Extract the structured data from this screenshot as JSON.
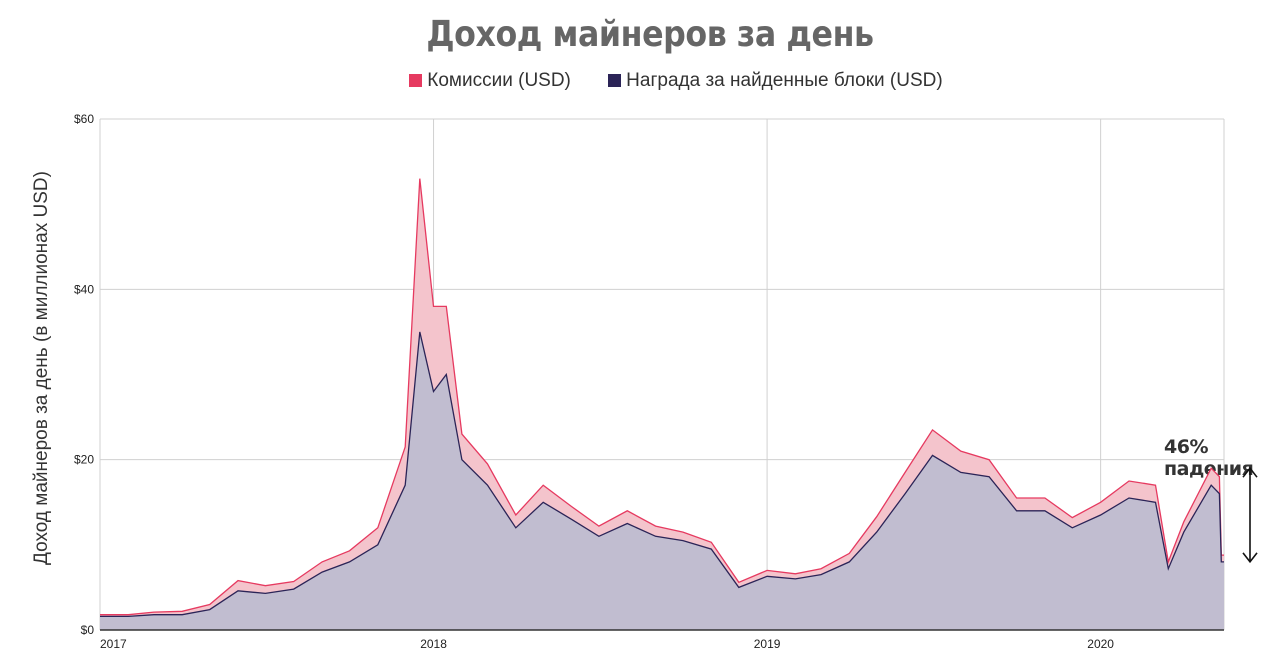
{
  "chart_data": {
    "type": "area",
    "title": "Доход майнеров за день",
    "xlabel": "",
    "ylabel": "Доход майнеров за день (в миллионах USD)",
    "ylim": [
      0,
      60
    ],
    "xlim": [
      "2017-01-01",
      "2020-05-15"
    ],
    "y_ticks": [
      "$0",
      "$20",
      "$40",
      "$60"
    ],
    "y_tick_values": [
      0,
      20,
      40,
      60
    ],
    "x_ticks": [
      "2017",
      "2018",
      "2019",
      "2020"
    ],
    "x_tick_dates": [
      "2017-01-01",
      "2018-01-01",
      "2019-01-01",
      "2020-01-01"
    ],
    "grid": true,
    "legend_position": "top",
    "stacked": true,
    "series": [
      {
        "name": "Награда за найденные блоки (USD)",
        "color": "#2b2457",
        "points": [
          [
            "2017-01-01",
            1.6
          ],
          [
            "2017-02-01",
            1.6
          ],
          [
            "2017-03-01",
            1.8
          ],
          [
            "2017-04-01",
            1.8
          ],
          [
            "2017-05-01",
            2.4
          ],
          [
            "2017-06-01",
            4.6
          ],
          [
            "2017-07-01",
            4.3
          ],
          [
            "2017-08-01",
            4.8
          ],
          [
            "2017-09-01",
            6.8
          ],
          [
            "2017-10-01",
            8.0
          ],
          [
            "2017-11-01",
            10.0
          ],
          [
            "2017-12-01",
            17.0
          ],
          [
            "2017-12-17",
            35.0
          ],
          [
            "2018-01-01",
            28.0
          ],
          [
            "2018-01-15",
            30.0
          ],
          [
            "2018-02-01",
            20.0
          ],
          [
            "2018-03-01",
            17.0
          ],
          [
            "2018-04-01",
            12.0
          ],
          [
            "2018-05-01",
            15.0
          ],
          [
            "2018-06-01",
            13.0
          ],
          [
            "2018-07-01",
            11.0
          ],
          [
            "2018-08-01",
            12.5
          ],
          [
            "2018-09-01",
            11.0
          ],
          [
            "2018-10-01",
            10.5
          ],
          [
            "2018-11-01",
            9.5
          ],
          [
            "2018-12-01",
            5.0
          ],
          [
            "2019-01-01",
            6.3
          ],
          [
            "2019-02-01",
            6.0
          ],
          [
            "2019-03-01",
            6.5
          ],
          [
            "2019-04-01",
            8.0
          ],
          [
            "2019-05-01",
            11.5
          ],
          [
            "2019-06-01",
            16.0
          ],
          [
            "2019-07-01",
            20.5
          ],
          [
            "2019-08-01",
            18.5
          ],
          [
            "2019-09-01",
            18.0
          ],
          [
            "2019-10-01",
            14.0
          ],
          [
            "2019-11-01",
            14.0
          ],
          [
            "2019-12-01",
            12.0
          ],
          [
            "2020-01-01",
            13.5
          ],
          [
            "2020-02-01",
            15.5
          ],
          [
            "2020-03-01",
            15.0
          ],
          [
            "2020-03-15",
            7.2
          ],
          [
            "2020-04-01",
            11.5
          ],
          [
            "2020-05-01",
            17.0
          ],
          [
            "2020-05-10",
            16.0
          ],
          [
            "2020-05-12",
            8.0
          ],
          [
            "2020-05-15",
            8.0
          ]
        ]
      },
      {
        "name": "Комиссии (USD)",
        "color": "#e63a60",
        "points": [
          [
            "2017-01-01",
            0.2
          ],
          [
            "2017-02-01",
            0.2
          ],
          [
            "2017-03-01",
            0.3
          ],
          [
            "2017-04-01",
            0.4
          ],
          [
            "2017-05-01",
            0.6
          ],
          [
            "2017-06-01",
            1.2
          ],
          [
            "2017-07-01",
            0.9
          ],
          [
            "2017-08-01",
            0.9
          ],
          [
            "2017-09-01",
            1.2
          ],
          [
            "2017-10-01",
            1.3
          ],
          [
            "2017-11-01",
            2.0
          ],
          [
            "2017-12-01",
            4.5
          ],
          [
            "2017-12-17",
            18.0
          ],
          [
            "2018-01-01",
            10.0
          ],
          [
            "2018-01-15",
            8.0
          ],
          [
            "2018-02-01",
            3.0
          ],
          [
            "2018-03-01",
            2.5
          ],
          [
            "2018-04-01",
            1.5
          ],
          [
            "2018-05-01",
            2.0
          ],
          [
            "2018-06-01",
            1.5
          ],
          [
            "2018-07-01",
            1.2
          ],
          [
            "2018-08-01",
            1.5
          ],
          [
            "2018-09-01",
            1.2
          ],
          [
            "2018-10-01",
            1.0
          ],
          [
            "2018-11-01",
            0.8
          ],
          [
            "2018-12-01",
            0.6
          ],
          [
            "2019-01-01",
            0.7
          ],
          [
            "2019-02-01",
            0.6
          ],
          [
            "2019-03-01",
            0.7
          ],
          [
            "2019-04-01",
            1.0
          ],
          [
            "2019-05-01",
            1.8
          ],
          [
            "2019-06-01",
            2.5
          ],
          [
            "2019-07-01",
            3.0
          ],
          [
            "2019-08-01",
            2.5
          ],
          [
            "2019-09-01",
            2.0
          ],
          [
            "2019-10-01",
            1.5
          ],
          [
            "2019-11-01",
            1.5
          ],
          [
            "2019-12-01",
            1.2
          ],
          [
            "2020-01-01",
            1.5
          ],
          [
            "2020-02-01",
            2.0
          ],
          [
            "2020-03-01",
            2.0
          ],
          [
            "2020-03-15",
            0.8
          ],
          [
            "2020-04-01",
            1.2
          ],
          [
            "2020-05-01",
            2.0
          ],
          [
            "2020-05-10",
            2.0
          ],
          [
            "2020-05-12",
            0.8
          ],
          [
            "2020-05-15",
            0.8
          ]
        ]
      }
    ],
    "annotation": {
      "text": "46% падения",
      "arrow_from_value": 19,
      "arrow_to_value": 8
    }
  },
  "legend": {
    "items": [
      {
        "label": "Комиссии (USD)",
        "color": "#e63a60"
      },
      {
        "label": "Награда за найденные блоки (USD)",
        "color": "#2b2457"
      }
    ]
  }
}
